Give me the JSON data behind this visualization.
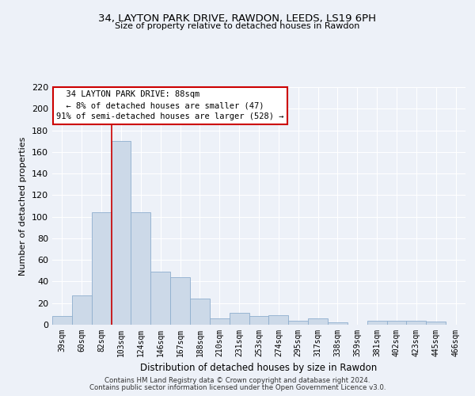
{
  "title_line1": "34, LAYTON PARK DRIVE, RAWDON, LEEDS, LS19 6PH",
  "title_line2": "Size of property relative to detached houses in Rawdon",
  "xlabel": "Distribution of detached houses by size in Rawdon",
  "ylabel": "Number of detached properties",
  "bar_labels": [
    "39sqm",
    "60sqm",
    "82sqm",
    "103sqm",
    "124sqm",
    "146sqm",
    "167sqm",
    "188sqm",
    "210sqm",
    "231sqm",
    "253sqm",
    "274sqm",
    "295sqm",
    "317sqm",
    "338sqm",
    "359sqm",
    "381sqm",
    "402sqm",
    "423sqm",
    "445sqm",
    "466sqm"
  ],
  "bar_values": [
    8,
    27,
    104,
    170,
    104,
    49,
    44,
    24,
    6,
    11,
    8,
    9,
    4,
    6,
    2,
    0,
    4,
    4,
    4,
    3,
    0
  ],
  "bar_color": "#ccd9e8",
  "bar_edge_color": "#8eaece",
  "property_line_x": 2.5,
  "annotation_line1": "  34 LAYTON PARK DRIVE: 88sqm",
  "annotation_line2": "  ← 8% of detached houses are smaller (47)",
  "annotation_line3": "91% of semi-detached houses are larger (528) →",
  "annotation_box_color": "#ffffff",
  "annotation_box_edgecolor": "#cc0000",
  "vline_color": "#cc0000",
  "ylim": [
    0,
    220
  ],
  "yticks": [
    0,
    20,
    40,
    60,
    80,
    100,
    120,
    140,
    160,
    180,
    200,
    220
  ],
  "background_color": "#edf1f8",
  "grid_color": "#ffffff",
  "footer_line1": "Contains HM Land Registry data © Crown copyright and database right 2024.",
  "footer_line2": "Contains public sector information licensed under the Open Government Licence v3.0."
}
